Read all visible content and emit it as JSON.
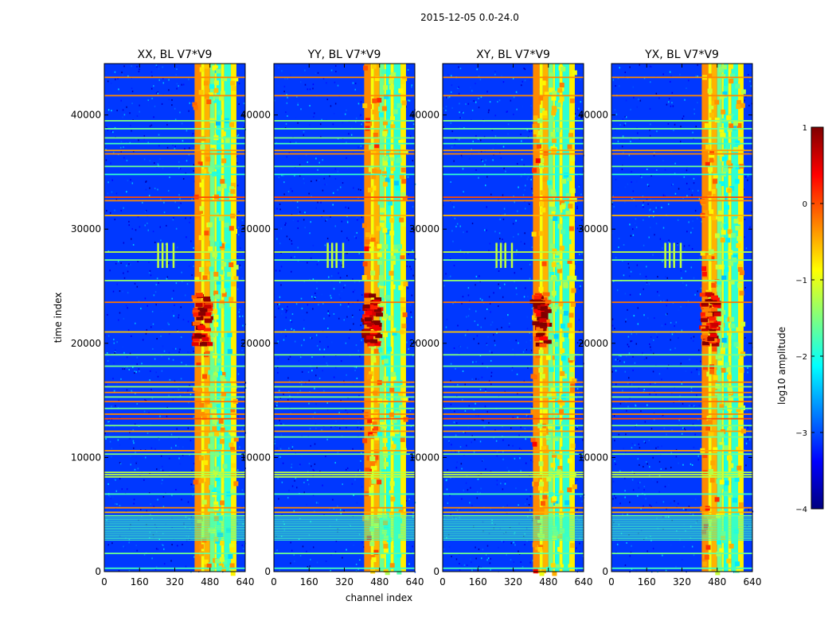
{
  "figure": {
    "suptitle": "2015-12-05 0.0-24.0"
  },
  "colors": {
    "jet": [
      "#00007f",
      "#0000ff",
      "#007fff",
      "#00ffff",
      "#7fff7f",
      "#ffff00",
      "#ff7f00",
      "#ff0000",
      "#7f0000"
    ]
  },
  "chart_data": [
    {
      "type": "heatmap",
      "title": "XX, BL V7*V9",
      "pol": "XX",
      "xlabel": "",
      "ylabel": "time index",
      "xlim": [
        0,
        640
      ],
      "ylim": [
        0,
        44500
      ],
      "xticks": [
        0,
        160,
        320,
        480,
        640
      ],
      "yticks": [
        0,
        10000,
        20000,
        30000,
        40000
      ],
      "colorbar": {
        "label": "log10 amplitude",
        "range": [
          -4,
          1
        ],
        "ticks": [
          1,
          0,
          -1,
          -2,
          -3,
          -4
        ]
      }
    },
    {
      "type": "heatmap",
      "title": "YY, BL V7*V9",
      "pol": "YY",
      "xlabel": "channel index",
      "ylabel": "",
      "xlim": [
        0,
        640
      ],
      "ylim": [
        0,
        44500
      ],
      "xticks": [
        0,
        160,
        320,
        480,
        640
      ],
      "yticks": [
        0,
        10000,
        20000,
        30000,
        40000
      ]
    },
    {
      "type": "heatmap",
      "title": "XY, BL V7*V9",
      "pol": "XY",
      "xlabel": "",
      "ylabel": "",
      "xlim": [
        0,
        640
      ],
      "ylim": [
        0,
        44500
      ],
      "xticks": [
        0,
        160,
        320,
        480,
        640
      ],
      "yticks": [
        0,
        10000,
        20000,
        30000,
        40000
      ]
    },
    {
      "type": "heatmap",
      "title": "YX, BL V7*V9",
      "pol": "YX",
      "xlabel": "",
      "ylabel": "",
      "xlim": [
        0,
        640
      ],
      "ylim": [
        0,
        44500
      ],
      "xticks": [
        0,
        160,
        320,
        480,
        640
      ],
      "yticks": [
        0,
        10000,
        20000,
        30000,
        40000
      ]
    }
  ],
  "features": {
    "background_level": -3.1,
    "vertical_bands": [
      {
        "range": [
          410,
          440
        ],
        "level": -0.3
      },
      {
        "range": [
          440,
          455
        ],
        "level": -0.9
      },
      {
        "range": [
          455,
          480
        ],
        "level": -0.5
      },
      {
        "range": [
          480,
          500
        ],
        "level": -1.6
      },
      {
        "range": [
          500,
          510
        ],
        "level": -1.0
      },
      {
        "range": [
          510,
          530
        ],
        "level": -2.0
      },
      {
        "range": [
          530,
          545
        ],
        "level": -0.9
      },
      {
        "range": [
          545,
          575
        ],
        "level": -1.9
      },
      {
        "range": [
          575,
          600
        ],
        "level": -0.8
      }
    ],
    "horizontal_lines": [
      {
        "time": 43300,
        "level": -0.3
      },
      {
        "time": 41700,
        "level": -0.3
      },
      {
        "time": 39500,
        "level": -1.5
      },
      {
        "time": 38800,
        "level": -1.6
      },
      {
        "time": 38000,
        "level": -1.5
      },
      {
        "time": 37500,
        "level": -1.8
      },
      {
        "time": 36900,
        "level": -0.4
      },
      {
        "time": 36600,
        "level": -0.3
      },
      {
        "time": 35500,
        "level": -1.6
      },
      {
        "time": 34800,
        "level": -1.9
      },
      {
        "time": 32800,
        "level": 0.0
      },
      {
        "time": 32500,
        "level": -0.3
      },
      {
        "time": 31200,
        "level": -0.5
      },
      {
        "time": 28000,
        "level": -1.2
      },
      {
        "time": 27300,
        "level": -1.6
      },
      {
        "time": 25500,
        "level": -1.4
      },
      {
        "time": 23600,
        "level": -0.2
      },
      {
        "time": 21000,
        "level": -0.6
      },
      {
        "time": 19000,
        "level": -1.5
      },
      {
        "time": 18000,
        "level": -1.6
      },
      {
        "time": 16600,
        "level": -0.3
      },
      {
        "time": 16200,
        "level": -1.4
      },
      {
        "time": 15700,
        "level": -0.3
      },
      {
        "time": 15300,
        "level": -1.5
      },
      {
        "time": 14900,
        "level": -0.2
      },
      {
        "time": 14300,
        "level": -1.6
      },
      {
        "time": 13800,
        "level": -0.3
      },
      {
        "time": 13400,
        "level": 0.0
      },
      {
        "time": 12800,
        "level": -1.5
      },
      {
        "time": 12300,
        "level": -0.4
      },
      {
        "time": 11800,
        "level": -1.6
      },
      {
        "time": 10600,
        "level": -0.4
      },
      {
        "time": 10300,
        "level": -1.5
      },
      {
        "time": 8700,
        "level": -1.2
      },
      {
        "time": 8500,
        "level": -1.2
      },
      {
        "time": 8300,
        "level": -1.2
      },
      {
        "time": 6800,
        "level": -1.8
      },
      {
        "time": 5600,
        "level": -0.3
      },
      {
        "time": 5200,
        "level": -0.5
      },
      {
        "time": 4900,
        "level": -1.6
      },
      {
        "time": 1600,
        "level": -1.6
      },
      {
        "time": 300,
        "level": -1.8
      }
    ],
    "striped_block": {
      "time_range": [
        2800,
        4800
      ],
      "level": -1.8
    },
    "rfi_block": {
      "time_range": [
        20000,
        24500
      ],
      "channels": [
        410,
        480
      ],
      "level": 0.5
    },
    "short_bursts": {
      "time_range": [
        26600,
        28800
      ],
      "channels": [
        240,
        260,
        280,
        310
      ],
      "level": -1.2
    }
  }
}
